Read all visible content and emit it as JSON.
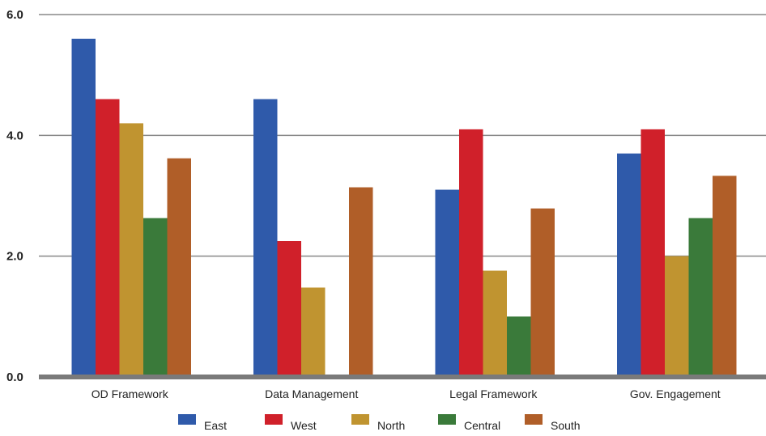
{
  "chart_data": {
    "type": "bar",
    "title": "",
    "xlabel": "",
    "ylabel": "",
    "ylim": [
      0,
      6
    ],
    "yticks": [
      "0.0",
      "2.0",
      "4.0",
      "6.0"
    ],
    "grid": true,
    "legend_position": "bottom",
    "categories": [
      "OD Framework",
      "Data Management",
      "Legal Framework",
      "Gov. Engagement"
    ],
    "series": [
      {
        "name": "East",
        "color": "#2f5aaa",
        "values": [
          5.6,
          4.6,
          3.1,
          3.7
        ]
      },
      {
        "name": "West",
        "color": "#d0202a",
        "values": [
          4.6,
          2.25,
          4.1,
          4.1
        ]
      },
      {
        "name": "North",
        "color": "#c09430",
        "values": [
          4.2,
          1.48,
          1.76,
          2.0
        ]
      },
      {
        "name": "Central",
        "color": "#3a7a3a",
        "values": [
          2.63,
          0,
          1.0,
          2.63
        ]
      },
      {
        "name": "South",
        "color": "#b05e28",
        "values": [
          3.62,
          3.14,
          2.79,
          3.33
        ]
      }
    ],
    "colors": {
      "gridline": "#888888",
      "baseline": "#7a7a7a",
      "text": "#222222"
    }
  }
}
